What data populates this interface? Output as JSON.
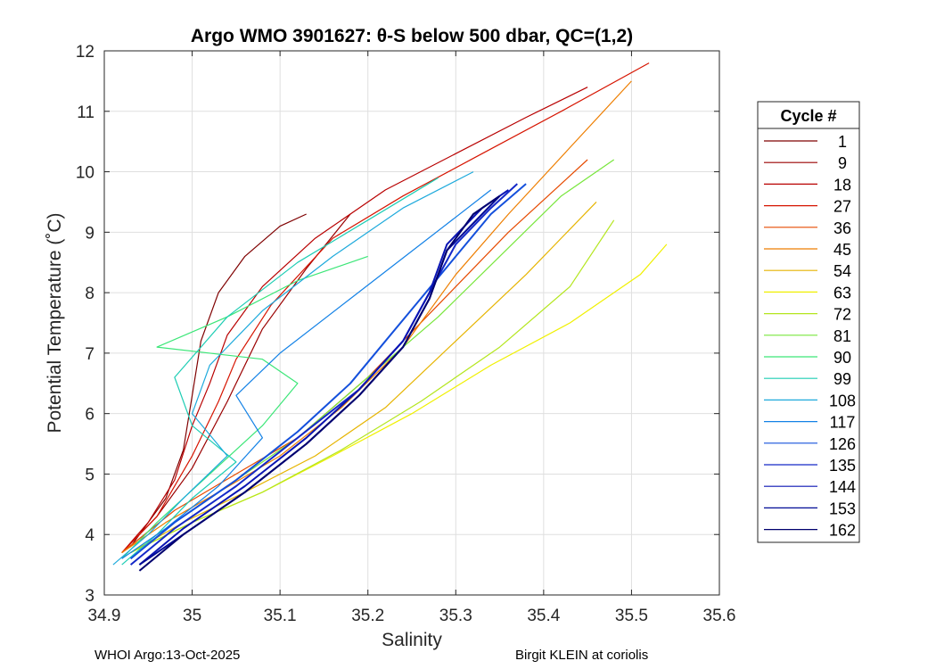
{
  "chart_data": {
    "type": "line",
    "title": "Argo WMO 3901627: θ-S below 500 dbar,  QC=(1,2)",
    "xlabel": "Salinity",
    "ylabel": "Potential Temperature (˚C)",
    "xlim": [
      34.9,
      35.6
    ],
    "ylim": [
      3,
      12
    ],
    "xticks": [
      "34.9",
      "35",
      "35.1",
      "35.2",
      "35.3",
      "35.4",
      "35.5",
      "35.6"
    ],
    "yticks": [
      "3",
      "4",
      "5",
      "6",
      "7",
      "8",
      "9",
      "10",
      "11",
      "12"
    ],
    "grid": true,
    "legend": {
      "title": "Cycle #",
      "placement": "right-outside",
      "entries": [
        "1",
        "9",
        "18",
        "27",
        "36",
        "45",
        "54",
        "63",
        "72",
        "81",
        "90",
        "99",
        "108",
        "117",
        "126",
        "135",
        "144",
        "153",
        "162"
      ],
      "colors": [
        "#7f0000",
        "#9a0000",
        "#b80000",
        "#d61400",
        "#e64a00",
        "#ee7e00",
        "#e6b400",
        "#f0f000",
        "#b4e61e",
        "#78e63c",
        "#3ce678",
        "#1ecdb4",
        "#1eaadc",
        "#1482e6",
        "#1450dc",
        "#1428c8",
        "#0a14b4",
        "#000a96",
        "#00006e"
      ]
    },
    "series": [
      {
        "name": "1",
        "x": [
          34.93,
          34.95,
          34.97,
          34.99,
          35.0,
          35.01,
          35.03,
          35.06,
          35.1,
          35.13
        ],
        "y": [
          3.8,
          4.2,
          4.6,
          5.4,
          6.3,
          7.2,
          8.0,
          8.6,
          9.1,
          9.3
        ]
      },
      {
        "name": "9",
        "x": [
          34.92,
          34.96,
          35.0,
          35.04,
          35.08,
          35.13,
          35.18
        ],
        "y": [
          3.7,
          4.3,
          5.1,
          6.2,
          7.4,
          8.4,
          9.3
        ]
      },
      {
        "name": "18",
        "x": [
          34.92,
          34.95,
          34.98,
          35.0,
          35.02,
          35.04,
          35.08,
          35.14,
          35.22,
          35.3,
          35.38,
          35.45
        ],
        "y": [
          3.7,
          4.2,
          4.9,
          5.8,
          6.5,
          7.3,
          8.1,
          8.9,
          9.7,
          10.3,
          10.9,
          11.4
        ]
      },
      {
        "name": "27",
        "x": [
          34.92,
          34.96,
          35.0,
          35.03,
          35.05,
          35.09,
          35.16,
          35.24,
          35.33,
          35.42,
          35.52
        ],
        "y": [
          3.7,
          4.3,
          5.3,
          6.2,
          6.9,
          7.8,
          8.9,
          9.6,
          10.3,
          11.0,
          11.8
        ]
      },
      {
        "name": "36",
        "x": [
          34.92,
          34.98,
          35.05,
          35.12,
          35.2,
          35.28,
          35.36,
          35.45
        ],
        "y": [
          3.7,
          4.4,
          5.0,
          5.6,
          6.6,
          7.8,
          9.0,
          10.2
        ]
      },
      {
        "name": "45",
        "x": [
          34.92,
          34.97,
          35.03,
          35.1,
          35.17,
          35.24,
          35.3,
          35.36,
          35.43,
          35.5
        ],
        "y": [
          3.7,
          4.2,
          4.7,
          5.3,
          6.1,
          7.1,
          8.3,
          9.3,
          10.4,
          11.5
        ]
      },
      {
        "name": "54",
        "x": [
          34.93,
          34.99,
          35.06,
          35.14,
          35.22,
          35.3,
          35.38,
          35.46
        ],
        "y": [
          3.7,
          4.2,
          4.7,
          5.3,
          6.1,
          7.2,
          8.3,
          9.5
        ]
      },
      {
        "name": "63",
        "x": [
          34.93,
          35.0,
          35.08,
          35.16,
          35.25,
          35.34,
          35.43,
          35.51,
          35.54
        ],
        "y": [
          3.7,
          4.2,
          4.7,
          5.3,
          6.0,
          6.8,
          7.5,
          8.3,
          8.8
        ]
      },
      {
        "name": "72",
        "x": [
          34.93,
          35.0,
          35.08,
          35.17,
          35.26,
          35.35,
          35.43,
          35.48
        ],
        "y": [
          3.7,
          4.2,
          4.7,
          5.4,
          6.2,
          7.1,
          8.1,
          9.2
        ]
      },
      {
        "name": "81",
        "x": [
          34.93,
          34.98,
          35.04,
          35.12,
          35.2,
          35.28,
          35.35,
          35.42,
          35.48
        ],
        "y": [
          3.7,
          4.2,
          4.8,
          5.6,
          6.6,
          7.6,
          8.6,
          9.6,
          10.2
        ]
      },
      {
        "name": "90",
        "x": [
          34.92,
          34.96,
          35.02,
          35.08,
          35.12,
          35.08,
          34.96,
          35.04,
          35.12,
          35.2
        ],
        "y": [
          3.6,
          4.2,
          5.0,
          5.8,
          6.5,
          6.9,
          7.1,
          7.6,
          8.2,
          8.6
        ]
      },
      {
        "name": "99",
        "x": [
          34.92,
          34.96,
          35.0,
          35.05,
          35.0,
          34.98,
          35.04,
          35.12,
          35.2,
          35.28
        ],
        "y": [
          3.5,
          4.0,
          4.6,
          5.2,
          5.8,
          6.6,
          7.6,
          8.5,
          9.2,
          9.9
        ]
      },
      {
        "name": "108",
        "x": [
          34.91,
          34.95,
          34.99,
          35.04,
          35.0,
          35.02,
          35.08,
          35.16,
          35.24,
          35.32
        ],
        "y": [
          3.5,
          4.0,
          4.6,
          5.3,
          6.0,
          6.8,
          7.7,
          8.6,
          9.4,
          10.0
        ]
      },
      {
        "name": "117",
        "x": [
          34.92,
          34.97,
          35.03,
          35.08,
          35.05,
          35.1,
          35.18,
          35.26,
          35.34
        ],
        "y": [
          3.6,
          4.1,
          4.8,
          5.6,
          6.3,
          7.0,
          7.9,
          8.8,
          9.7
        ]
      },
      {
        "name": "126",
        "x": [
          34.93,
          34.98,
          35.05,
          35.12,
          35.18,
          35.22,
          35.26,
          35.3,
          35.34,
          35.38
        ],
        "y": [
          3.6,
          4.2,
          4.9,
          5.7,
          6.5,
          7.2,
          7.9,
          8.6,
          9.3,
          9.8
        ]
      },
      {
        "name": "135",
        "x": [
          34.93,
          34.98,
          35.05,
          35.12,
          35.19,
          35.24,
          35.27,
          35.3,
          35.34,
          35.37
        ],
        "y": [
          3.5,
          4.1,
          4.8,
          5.6,
          6.4,
          7.2,
          8.0,
          8.8,
          9.4,
          9.8
        ]
      },
      {
        "name": "144",
        "x": [
          34.94,
          34.99,
          35.06,
          35.13,
          35.19,
          35.24,
          35.27,
          35.29,
          35.33,
          35.36
        ],
        "y": [
          3.5,
          4.1,
          4.8,
          5.6,
          6.4,
          7.2,
          8.0,
          8.8,
          9.4,
          9.7
        ]
      },
      {
        "name": "153",
        "x": [
          34.94,
          34.99,
          35.06,
          35.13,
          35.19,
          35.24,
          35.27,
          35.29,
          35.33,
          35.35
        ],
        "y": [
          3.5,
          4.0,
          4.7,
          5.5,
          6.3,
          7.1,
          7.9,
          8.7,
          9.3,
          9.6
        ]
      },
      {
        "name": "162",
        "x": [
          34.94,
          34.99,
          35.06,
          35.13,
          35.19,
          35.24,
          35.27,
          35.29,
          35.32,
          35.35
        ],
        "y": [
          3.4,
          4.0,
          4.7,
          5.5,
          6.3,
          7.1,
          7.9,
          8.7,
          9.3,
          9.6
        ]
      }
    ]
  },
  "footer": {
    "left": "WHOI Argo:13-Oct-2025",
    "right": "Birgit KLEIN at coriolis"
  }
}
